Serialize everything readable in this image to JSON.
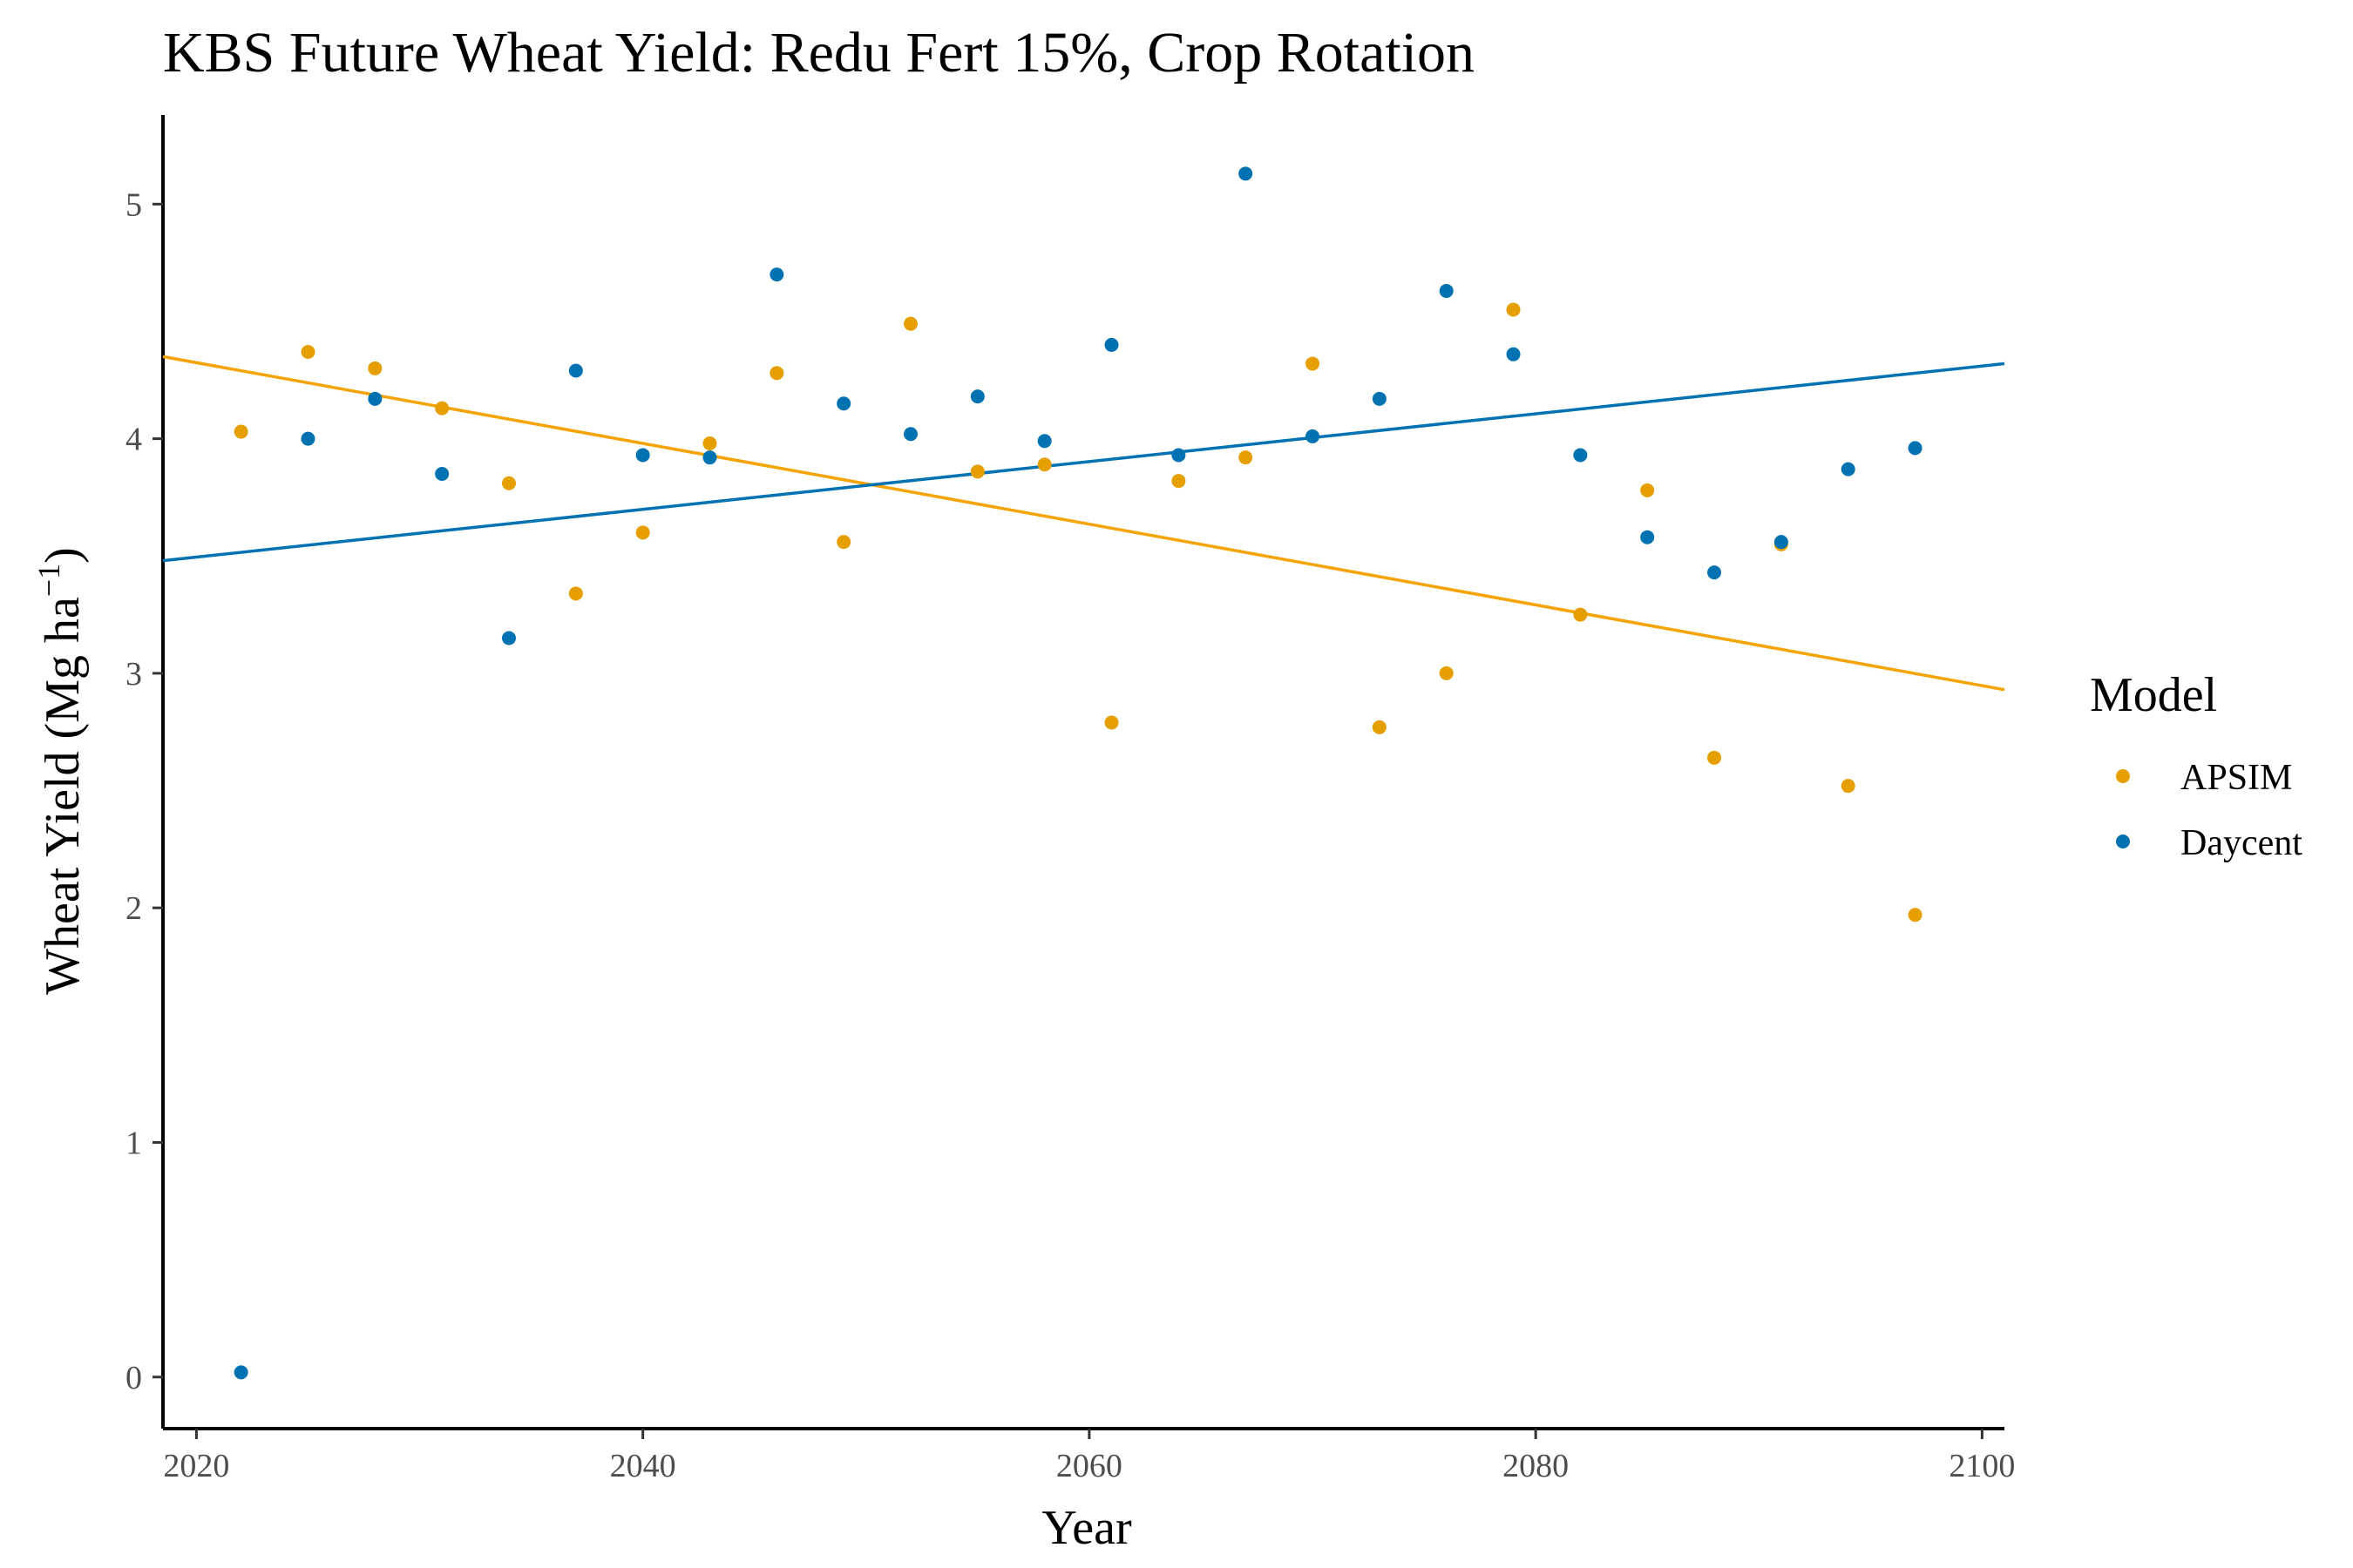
{
  "chart_data": {
    "type": "scatter",
    "title": "KBS Future Wheat Yield:  Redu Fert 15%, Crop Rotation",
    "xlabel": "Year",
    "ylabel_main": "Wheat Yield (Mg ha",
    "ylabel_sup": "−1",
    "ylabel_close": ")",
    "xlim": [
      2018.5,
      2101
    ],
    "ylim": [
      -0.22,
      5.38
    ],
    "x_ticks": [
      2020,
      2040,
      2060,
      2080,
      2100
    ],
    "y_ticks": [
      0,
      1,
      2,
      3,
      4,
      5
    ],
    "grid": false,
    "legend": {
      "title": "Model",
      "position": "right"
    },
    "series": [
      {
        "name": "APSIM",
        "color": "#E69F00",
        "line_color": "#F5A300",
        "x": [
          2022,
          2025,
          2028,
          2031,
          2034,
          2037,
          2040,
          2043,
          2046,
          2049,
          2052,
          2055,
          2058,
          2061,
          2064,
          2067,
          2070,
          2073,
          2076,
          2079,
          2082,
          2085,
          2088,
          2091,
          2094,
          2097
        ],
        "y": [
          4.03,
          4.37,
          4.3,
          4.13,
          3.81,
          3.34,
          3.6,
          3.98,
          4.28,
          3.56,
          4.49,
          3.86,
          3.89,
          2.79,
          3.82,
          3.92,
          4.32,
          2.77,
          3.0,
          4.55,
          3.25,
          3.78,
          2.64,
          3.55,
          2.52,
          1.97
        ],
        "trend": {
          "x": [
            2018.5,
            2101
          ],
          "y": [
            4.35,
            2.93
          ]
        }
      },
      {
        "name": "Daycent",
        "color": "#0072B2",
        "line_color": "#0072B2",
        "x": [
          2022,
          2025,
          2028,
          2031,
          2034,
          2037,
          2040,
          2043,
          2046,
          2049,
          2052,
          2055,
          2058,
          2061,
          2064,
          2067,
          2070,
          2073,
          2076,
          2079,
          2082,
          2085,
          2088,
          2091,
          2094,
          2097
        ],
        "y": [
          0.02,
          4.0,
          4.17,
          3.85,
          3.15,
          4.29,
          3.93,
          3.92,
          4.7,
          4.15,
          4.02,
          4.18,
          3.99,
          4.4,
          3.93,
          5.13,
          4.01,
          4.17,
          4.63,
          4.36,
          3.93,
          3.58,
          3.43,
          3.56,
          3.87,
          3.96
        ],
        "trend": {
          "x": [
            2018.5,
            2101
          ],
          "y": [
            3.48,
            4.32
          ]
        }
      }
    ]
  }
}
